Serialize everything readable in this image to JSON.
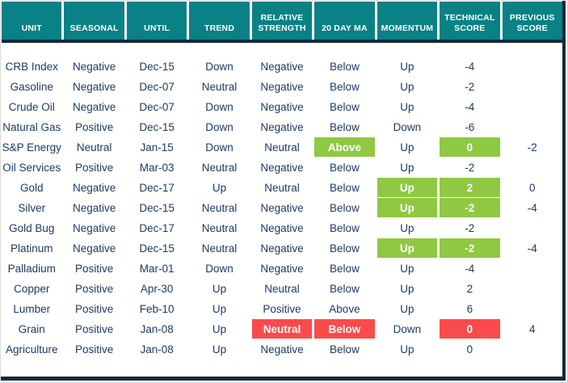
{
  "table": {
    "columns": [
      {
        "key": "unit",
        "label": "UNIT"
      },
      {
        "key": "seasonal",
        "label": "SEASONAL"
      },
      {
        "key": "until",
        "label": "UNTIL"
      },
      {
        "key": "trend",
        "label": "TREND"
      },
      {
        "key": "relative_strength",
        "label": "RELATIVE STRENGTH"
      },
      {
        "key": "twenty_day_ma",
        "label": "20 DAY MA"
      },
      {
        "key": "momentum",
        "label": "MOMENTUM"
      },
      {
        "key": "technical_score",
        "label": "TECHNICAL SCORE"
      },
      {
        "key": "previous_score",
        "label": "PREVIOUS SCORE"
      }
    ],
    "rows": [
      {
        "unit": "CRB Index",
        "seasonal": "Negative",
        "until": "Dec-15",
        "trend": "Down",
        "relative_strength": "Negative",
        "twenty_day_ma": "Below",
        "momentum": "Up",
        "technical_score": "-4",
        "previous_score": "",
        "highlights": {}
      },
      {
        "unit": "Gasoline",
        "seasonal": "Negative",
        "until": "Dec-07",
        "trend": "Neutral",
        "relative_strength": "Negative",
        "twenty_day_ma": "Below",
        "momentum": "Up",
        "technical_score": "-2",
        "previous_score": "",
        "highlights": {}
      },
      {
        "unit": "Crude Oil",
        "seasonal": "Negative",
        "until": "Dec-07",
        "trend": "Down",
        "relative_strength": "Negative",
        "twenty_day_ma": "Below",
        "momentum": "Up",
        "technical_score": "-4",
        "previous_score": "",
        "highlights": {}
      },
      {
        "unit": "Natural Gas",
        "seasonal": "Positive",
        "until": "Dec-15",
        "trend": "Down",
        "relative_strength": "Negative",
        "twenty_day_ma": "Below",
        "momentum": "Down",
        "technical_score": "-6",
        "previous_score": "",
        "highlights": {}
      },
      {
        "unit": "S&P Energy",
        "seasonal": "Neutral",
        "until": "Jan-15",
        "trend": "Down",
        "relative_strength": "Neutral",
        "twenty_day_ma": "Above",
        "momentum": "Up",
        "technical_score": "0",
        "previous_score": "-2",
        "highlights": {
          "twenty_day_ma": "green",
          "technical_score": "green"
        }
      },
      {
        "unit": "Oil Services",
        "seasonal": "Positive",
        "until": "Mar-03",
        "trend": "Neutral",
        "relative_strength": "Negative",
        "twenty_day_ma": "Below",
        "momentum": "Up",
        "technical_score": "-2",
        "previous_score": "",
        "highlights": {}
      },
      {
        "unit": "Gold",
        "seasonal": "Negative",
        "until": "Dec-17",
        "trend": "Up",
        "relative_strength": "Neutral",
        "twenty_day_ma": "Below",
        "momentum": "Up",
        "technical_score": "2",
        "previous_score": "0",
        "highlights": {
          "momentum": "green",
          "technical_score": "green"
        }
      },
      {
        "unit": "Silver",
        "seasonal": "Negative",
        "until": "Dec-15",
        "trend": "Neutral",
        "relative_strength": "Negative",
        "twenty_day_ma": "Below",
        "momentum": "Up",
        "technical_score": "-2",
        "previous_score": "-4",
        "highlights": {
          "momentum": "green",
          "technical_score": "green"
        }
      },
      {
        "unit": "Gold Bug",
        "seasonal": "Negative",
        "until": "Dec-17",
        "trend": "Neutral",
        "relative_strength": "Negative",
        "twenty_day_ma": "Below",
        "momentum": "Up",
        "technical_score": "-2",
        "previous_score": "",
        "highlights": {}
      },
      {
        "unit": "Platinum",
        "seasonal": "Negative",
        "until": "Dec-15",
        "trend": "Neutral",
        "relative_strength": "Negative",
        "twenty_day_ma": "Below",
        "momentum": "Up",
        "technical_score": "-2",
        "previous_score": "-4",
        "highlights": {
          "momentum": "green",
          "technical_score": "green"
        }
      },
      {
        "unit": "Palladium",
        "seasonal": "Positive",
        "until": "Mar-01",
        "trend": "Down",
        "relative_strength": "Negative",
        "twenty_day_ma": "Below",
        "momentum": "Up",
        "technical_score": "-4",
        "previous_score": "",
        "highlights": {}
      },
      {
        "unit": "Copper",
        "seasonal": "Positive",
        "until": "Apr-30",
        "trend": "Up",
        "relative_strength": "Neutral",
        "twenty_day_ma": "Below",
        "momentum": "Up",
        "technical_score": "2",
        "previous_score": "",
        "highlights": {}
      },
      {
        "unit": "Lumber",
        "seasonal": "Positive",
        "until": "Feb-10",
        "trend": "Up",
        "relative_strength": "Positive",
        "twenty_day_ma": "Above",
        "momentum": "Up",
        "technical_score": "6",
        "previous_score": "",
        "highlights": {}
      },
      {
        "unit": "Grain",
        "seasonal": "Positive",
        "until": "Jan-08",
        "trend": "Up",
        "relative_strength": "Neutral",
        "twenty_day_ma": "Below",
        "momentum": "Down",
        "technical_score": "0",
        "previous_score": "4",
        "highlights": {
          "relative_strength": "red",
          "twenty_day_ma": "red",
          "technical_score": "red"
        }
      },
      {
        "unit": "Agriculture",
        "seasonal": "Positive",
        "until": "Jan-08",
        "trend": "Up",
        "relative_strength": "Negative",
        "twenty_day_ma": "Below",
        "momentum": "Up",
        "technical_score": "0",
        "previous_score": "",
        "highlights": {}
      }
    ]
  },
  "colors": {
    "header_teal": "#0a8185",
    "divider_navy": "#16293b",
    "row_stripe_blue": "#dce6f2",
    "cell_text_navy": "#1e3a63",
    "highlight_green": "#8fc842",
    "highlight_red": "#f94b4b"
  }
}
